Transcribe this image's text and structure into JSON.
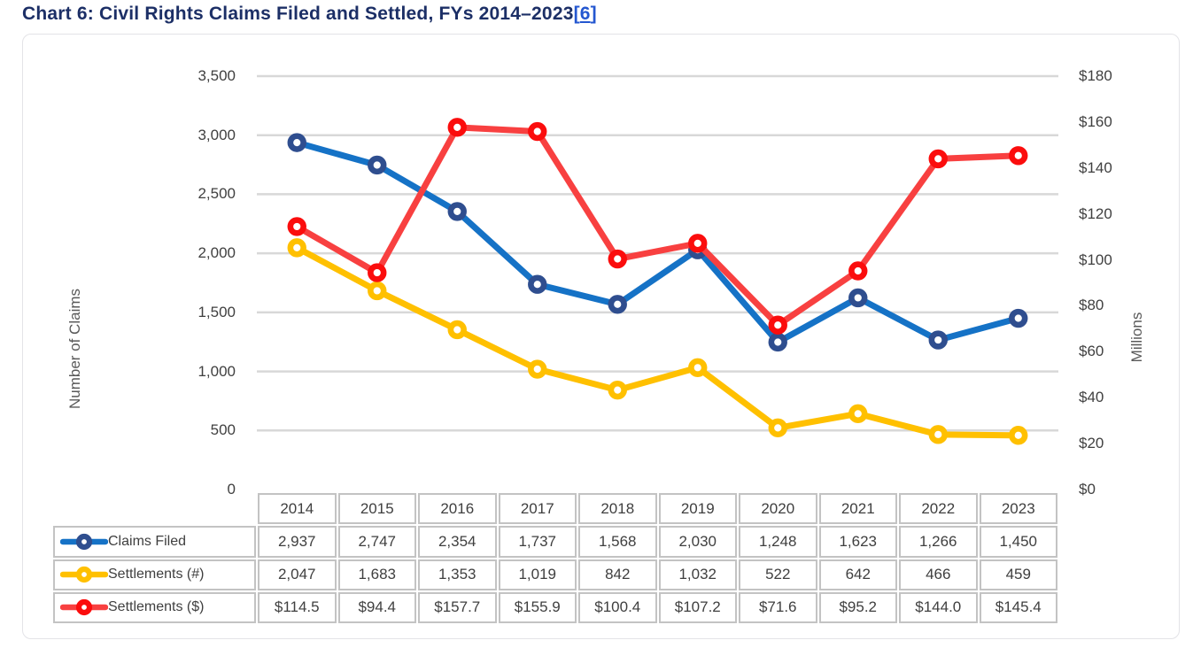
{
  "page_title": {
    "text": "Chart 6: Civil Rights Claims Filed and Settled, FYs 2014–2023",
    "footnote_open": "[",
    "footnote_ref": "6",
    "footnote_close": "]"
  },
  "colors": {
    "title_text": "#1c2f66",
    "footnote_link": "#2457d0",
    "gridline": "#d8d8d8",
    "axis_tick_text": "#404040",
    "axis_title_text": "#595959",
    "table_border": "#c3c3c3",
    "table_text": "#3f3f3f",
    "card_border": "#e3e3e7"
  },
  "chart_data": {
    "type": "line",
    "title": "Chart 6: Civil Rights Claims Filed and Settled, FYs 2014–2023",
    "categories": [
      "2014",
      "2015",
      "2016",
      "2017",
      "2018",
      "2019",
      "2020",
      "2021",
      "2022",
      "2023"
    ],
    "grid": true,
    "legend_position": "table-left",
    "left_axis": {
      "title": "Number of Claims",
      "min": 0,
      "max": 3500,
      "step": 500,
      "tick_labels": [
        "3,500",
        "3,000",
        "2,500",
        "2,000",
        "1,500",
        "1,000",
        "500",
        "0"
      ]
    },
    "right_axis": {
      "title": "Millions",
      "min": 0,
      "max": 180,
      "step": 20,
      "tick_labels": [
        "$180",
        "$160",
        "$140",
        "$120",
        "$100",
        "$80",
        "$60",
        "$40",
        "$20",
        "$0"
      ]
    },
    "series": [
      {
        "key": "claims-filed",
        "name": "Claims Filed",
        "axis": "left",
        "line_color": "#1572c6",
        "marker_color": "#2f4e8f",
        "values": [
          2937,
          2747,
          2354,
          1737,
          1568,
          2030,
          1248,
          1623,
          1266,
          1450
        ],
        "display": [
          "2,937",
          "2,747",
          "2,354",
          "1,737",
          "1,568",
          "2,030",
          "1,248",
          "1,623",
          "1,266",
          "1,450"
        ]
      },
      {
        "key": "settlements-count",
        "name": "Settlements (#)",
        "axis": "left",
        "line_color": "#ffc000",
        "marker_color": "#ffc000",
        "values": [
          2047,
          1683,
          1353,
          1019,
          842,
          1032,
          522,
          642,
          466,
          459
        ],
        "display": [
          "2,047",
          "1,683",
          "1,353",
          "1,019",
          "842",
          "1,032",
          "522",
          "642",
          "466",
          "459"
        ]
      },
      {
        "key": "settlements-dollars",
        "name": "Settlements ($)",
        "axis": "right",
        "line_color": "#f84040",
        "marker_color": "#fb0d0d",
        "values": [
          114.5,
          94.4,
          157.7,
          155.9,
          100.4,
          107.2,
          71.6,
          95.2,
          144.0,
          145.4
        ],
        "display": [
          "$114.5",
          "$94.4",
          "$157.7",
          "$155.9",
          "$100.4",
          "$107.2",
          "$71.6",
          "$95.2",
          "$144.0",
          "$145.4"
        ]
      }
    ]
  }
}
